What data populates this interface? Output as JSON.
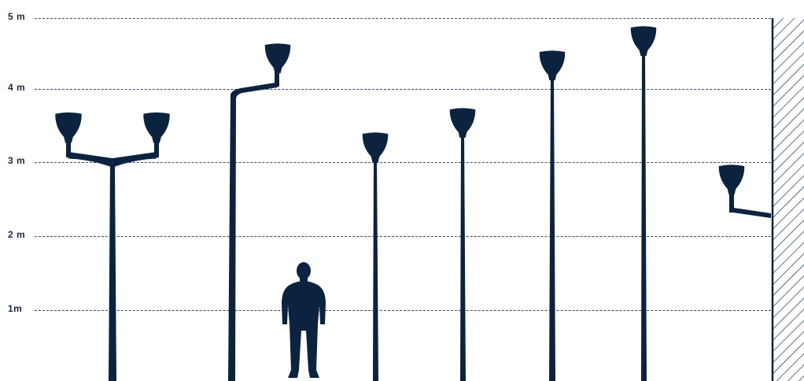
{
  "colors": {
    "fixture": "#0c2340",
    "grid": "#3a4860",
    "label": "#1a2a44",
    "background": "#ffffff"
  },
  "scale": {
    "unit": "m",
    "labels": [
      "5 m",
      "4 m",
      "3 m",
      "2 m",
      "1m"
    ]
  },
  "figures": [
    {
      "name": "double-arm-pole",
      "type": "double-bracket",
      "height_m": 3.6
    },
    {
      "name": "single-arm-pole",
      "type": "side-bracket",
      "height_m": 4.5
    },
    {
      "name": "post-top-pole",
      "type": "post-top",
      "height_m": 3.3
    },
    {
      "name": "post-top-pole",
      "type": "post-top",
      "height_m": 3.6
    },
    {
      "name": "post-top-pole",
      "type": "post-top",
      "height_m": 4.4
    },
    {
      "name": "post-top-pole",
      "type": "post-top",
      "height_m": 4.8
    },
    {
      "name": "wall-mounted-lamp",
      "type": "wall-bracket",
      "height_m": 2.9
    }
  ],
  "human": {
    "name": "person-silhouette",
    "height_m": 1.8
  }
}
